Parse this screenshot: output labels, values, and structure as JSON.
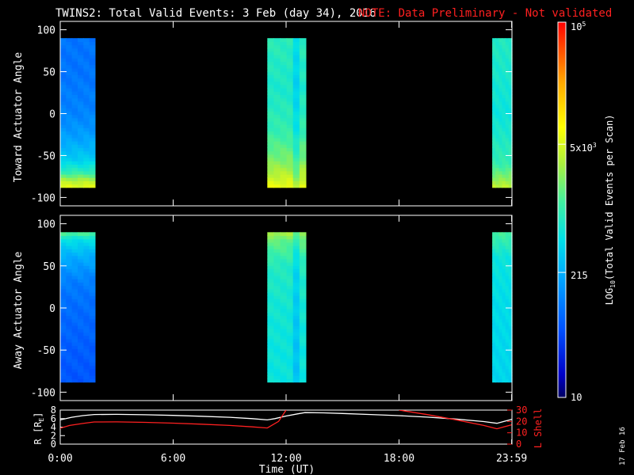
{
  "title": {
    "main": "TWINS2: Total Valid Events:  3 Feb (day  34), 2016",
    "note": "NOTE: Data Preliminary - Not validated",
    "note_color": "#ff2020"
  },
  "stamp": "17 Feb 16",
  "chart_data": [
    {
      "type": "heatmap",
      "name": "toward",
      "ylabel": "Toward Actuator Angle",
      "ylim": [
        -110,
        110
      ],
      "yticks": [
        100,
        50,
        0,
        -50,
        -100
      ],
      "xlim": [
        0,
        24
      ],
      "angle_range": [
        -88,
        90
      ],
      "blocks": [
        {
          "start_hr": 0.0,
          "end_hr": 1.85,
          "profile": [
            [
              -88,
              3.75
            ],
            [
              -80,
              3.55
            ],
            [
              -70,
              3.0
            ],
            [
              -55,
              2.55
            ],
            [
              -30,
              2.25
            ],
            [
              0,
              2.05
            ],
            [
              50,
              1.95
            ],
            [
              90,
              1.95
            ]
          ]
        },
        {
          "start_hr": 11.0,
          "end_hr": 13.05,
          "profile": [
            [
              -88,
              3.8
            ],
            [
              -75,
              3.6
            ],
            [
              -55,
              3.3
            ],
            [
              -20,
              3.0
            ],
            [
              30,
              2.85
            ],
            [
              90,
              2.95
            ]
          ],
          "dark_stripe_hr": [
            12.35,
            12.7
          ]
        },
        {
          "start_hr": 22.95,
          "end_hr": 24.0,
          "profile": [
            [
              -88,
              3.6
            ],
            [
              -60,
              3.0
            ],
            [
              0,
              2.75
            ],
            [
              90,
              2.9
            ]
          ]
        }
      ]
    },
    {
      "type": "heatmap",
      "name": "away",
      "ylabel": "Away Actuator Angle",
      "ylim": [
        -110,
        110
      ],
      "yticks": [
        100,
        50,
        0,
        -50,
        -100
      ],
      "xlim": [
        0,
        24
      ],
      "angle_range": [
        -88,
        90
      ],
      "blocks": [
        {
          "start_hr": 0.0,
          "end_hr": 1.85,
          "profile": [
            [
              90,
              3.2
            ],
            [
              82,
              2.7
            ],
            [
              60,
              2.3
            ],
            [
              30,
              2.0
            ],
            [
              0,
              1.9
            ],
            [
              -50,
              1.8
            ],
            [
              -88,
              1.75
            ]
          ]
        },
        {
          "start_hr": 11.0,
          "end_hr": 13.05,
          "profile": [
            [
              90,
              3.5
            ],
            [
              80,
              3.2
            ],
            [
              50,
              2.9
            ],
            [
              0,
              2.8
            ],
            [
              -50,
              2.75
            ],
            [
              -88,
              2.75
            ]
          ],
          "dark_stripe_hr": [
            12.35,
            12.7
          ]
        },
        {
          "start_hr": 22.95,
          "end_hr": 24.0,
          "profile": [
            [
              90,
              3.1
            ],
            [
              60,
              2.75
            ],
            [
              0,
              2.65
            ],
            [
              -88,
              2.6
            ]
          ]
        }
      ]
    },
    {
      "type": "line",
      "name": "orbit",
      "ylabel_left": "R [R",
      "ylabel_left_sub": "E",
      "ylabel_left_close": "]",
      "ylabel_right": "L Shell",
      "left_ylim": [
        0,
        8
      ],
      "right_ylim": [
        0,
        30
      ],
      "left_ticks": [
        8,
        6,
        4,
        2,
        0
      ],
      "right_ticks": [
        30,
        20,
        10,
        0
      ],
      "xticks": [
        {
          "hr": 0,
          "label": "0:00"
        },
        {
          "hr": 6,
          "label": "6:00"
        },
        {
          "hr": 12,
          "label": "12:00"
        },
        {
          "hr": 18,
          "label": "18:00"
        },
        {
          "hr": 23.983,
          "label": "23:59"
        }
      ],
      "xlabel": "Time (UT)",
      "series": [
        {
          "axis": "left",
          "color": "#ffffff",
          "x": [
            0,
            0.6,
            1.2,
            1.8,
            3,
            4.5,
            6,
            7.5,
            9,
            10.2,
            11.0,
            11.4,
            12.0,
            12.6,
            13.0,
            14,
            15,
            16.5,
            18,
            19.5,
            21,
            22.5,
            23.2,
            23.983
          ],
          "y": [
            5.7,
            6.3,
            6.7,
            6.95,
            7.0,
            6.9,
            6.75,
            6.55,
            6.3,
            6.0,
            5.7,
            6.0,
            6.6,
            7.1,
            7.4,
            7.35,
            7.2,
            6.95,
            6.7,
            6.35,
            5.9,
            5.3,
            4.9,
            5.8
          ]
        },
        {
          "axis": "right",
          "color": "#ff2020",
          "segments": [
            {
              "x": [
                0,
                0.5,
                1.2,
                1.8,
                3,
                4.5,
                6,
                7.5,
                9,
                10.2,
                11.0,
                11.6,
                12.0
              ],
              "y": [
                14,
                16.5,
                18.2,
                19.5,
                19.6,
                19.2,
                18.5,
                17.6,
                16.5,
                15.2,
                14.2,
                20,
                30
              ]
            },
            {
              "x": [
                18.0,
                19.5,
                21,
                22.5,
                23.2,
                23.983
              ],
              "y": [
                30,
                26,
                21.5,
                16.5,
                13.5,
                17
              ]
            }
          ]
        }
      ]
    }
  ],
  "colorbar": {
    "min_label": "10",
    "mid_label": "215",
    "upper_label": "5x10",
    "upper_exp": "3",
    "max_label": "10",
    "max_exp": "5",
    "title_pre": "LOG",
    "title_sub": "10",
    "title_post": "(Total Valid  Events per Scan)",
    "log_range": [
      1,
      5
    ]
  }
}
